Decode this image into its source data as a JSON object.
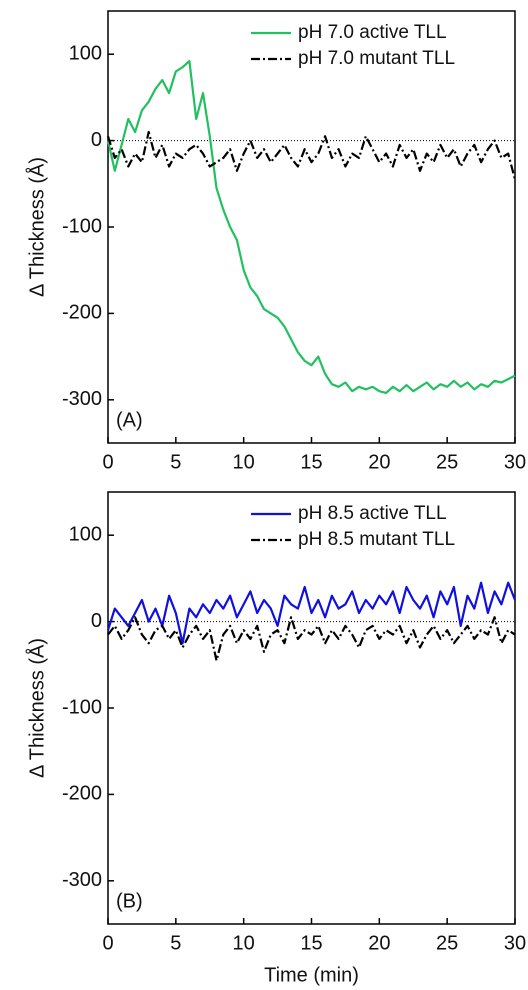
{
  "chart_data": [
    {
      "type": "line",
      "ylabel": "Δ Thickness (Å)",
      "panel_label": "(A)",
      "x": [
        0,
        0.5,
        1,
        1.5,
        2,
        2.5,
        3,
        3.5,
        4,
        4.5,
        5,
        5.5,
        6,
        6.5,
        7,
        7.5,
        8,
        8.5,
        9,
        9.5,
        10,
        10.5,
        11,
        11.5,
        12,
        12.5,
        13,
        13.5,
        14,
        14.5,
        15,
        15.5,
        16,
        16.5,
        17,
        17.5,
        18,
        18.5,
        19,
        19.5,
        20,
        20.5,
        21,
        21.5,
        22,
        22.5,
        23,
        23.5,
        24,
        24.5,
        25,
        25.5,
        26,
        26.5,
        27,
        27.5,
        28,
        28.5,
        29,
        29.5,
        30
      ],
      "series": [
        {
          "name": "pH 7.0 active TLL",
          "color": "#22c060",
          "dash": "solid",
          "values": [
            0,
            -35,
            -5,
            25,
            10,
            35,
            45,
            60,
            70,
            55,
            80,
            85,
            92,
            25,
            55,
            5,
            -55,
            -80,
            -100,
            -115,
            -150,
            -170,
            -180,
            -195,
            -200,
            -205,
            -215,
            -230,
            -245,
            -255,
            -260,
            -250,
            -270,
            -282,
            -285,
            -280,
            -290,
            -285,
            -288,
            -285,
            -290,
            -292,
            -285,
            -290,
            -283,
            -290,
            -285,
            -280,
            -288,
            -282,
            -285,
            -278,
            -285,
            -280,
            -288,
            -282,
            -285,
            -278,
            -280,
            -276,
            -272
          ]
        },
        {
          "name": "pH 7.0 mutant TLL",
          "color": "#000000",
          "dash": "dashdot",
          "values": [
            5,
            -20,
            -10,
            -30,
            -15,
            -25,
            10,
            -20,
            -5,
            -30,
            -15,
            -20,
            -10,
            -5,
            -15,
            -30,
            -25,
            -20,
            -10,
            -35,
            -15,
            0,
            -20,
            -10,
            -25,
            -15,
            -5,
            -20,
            -30,
            -10,
            -25,
            -15,
            5,
            -20,
            -10,
            -30,
            -15,
            -20,
            5,
            -10,
            -25,
            -15,
            -30,
            -5,
            -20,
            -10,
            -35,
            -15,
            -25,
            -5,
            -20,
            -10,
            -30,
            -15,
            -5,
            -25,
            -10,
            0,
            -20,
            -15,
            -45
          ]
        }
      ],
      "xlim": [
        0,
        30
      ],
      "xticks": [
        0,
        5,
        10,
        15,
        20,
        25,
        30
      ],
      "ylim": [
        -350,
        150
      ],
      "yticks": [
        -300,
        -200,
        -100,
        0,
        100
      ],
      "legend": "upper-right"
    },
    {
      "type": "line",
      "ylabel": "Δ Thickness (Å)",
      "xlabel": "Time (min)",
      "panel_label": "(B)",
      "x": [
        0,
        0.5,
        1,
        1.5,
        2,
        2.5,
        3,
        3.5,
        4,
        4.5,
        5,
        5.5,
        6,
        6.5,
        7,
        7.5,
        8,
        8.5,
        9,
        9.5,
        10,
        10.5,
        11,
        11.5,
        12,
        12.5,
        13,
        13.5,
        14,
        14.5,
        15,
        15.5,
        16,
        16.5,
        17,
        17.5,
        18,
        18.5,
        19,
        19.5,
        20,
        20.5,
        21,
        21.5,
        22,
        22.5,
        23,
        23.5,
        24,
        24.5,
        25,
        25.5,
        26,
        26.5,
        27,
        27.5,
        28,
        28.5,
        29,
        29.5,
        30
      ],
      "series": [
        {
          "name": "pH 8.5 active TLL",
          "color": "#1010e0",
          "dash": "solid",
          "values": [
            -10,
            15,
            5,
            -5,
            10,
            25,
            0,
            15,
            -5,
            30,
            10,
            -25,
            15,
            5,
            20,
            10,
            25,
            15,
            30,
            5,
            20,
            35,
            10,
            25,
            15,
            -5,
            30,
            20,
            15,
            40,
            10,
            25,
            5,
            30,
            15,
            20,
            35,
            10,
            25,
            15,
            30,
            20,
            35,
            10,
            40,
            25,
            15,
            30,
            5,
            35,
            20,
            40,
            -5,
            30,
            15,
            45,
            10,
            35,
            20,
            45,
            25
          ]
        },
        {
          "name": "pH 8.5 mutant TLL",
          "color": "#000000",
          "dash": "dashdot",
          "values": [
            -15,
            -5,
            -20,
            -10,
            5,
            -15,
            -25,
            -10,
            -5,
            -20,
            -10,
            -30,
            -15,
            -5,
            -20,
            -10,
            -45,
            -15,
            -5,
            -25,
            -10,
            -20,
            -5,
            -35,
            -15,
            -10,
            -25,
            5,
            -20,
            -10,
            -15,
            -5,
            -25,
            -10,
            -20,
            -5,
            -15,
            -30,
            -10,
            -5,
            -20,
            -10,
            -15,
            -5,
            -25,
            -10,
            -30,
            -15,
            -5,
            -20,
            -10,
            -25,
            -15,
            -5,
            -20,
            -10,
            -15,
            5,
            -25,
            -10,
            -15
          ]
        }
      ],
      "xlim": [
        0,
        30
      ],
      "xticks": [
        0,
        5,
        10,
        15,
        20,
        25,
        30
      ],
      "ylim": [
        -350,
        150
      ],
      "yticks": [
        -300,
        -200,
        -100,
        0,
        100
      ],
      "legend": "upper-right"
    }
  ]
}
